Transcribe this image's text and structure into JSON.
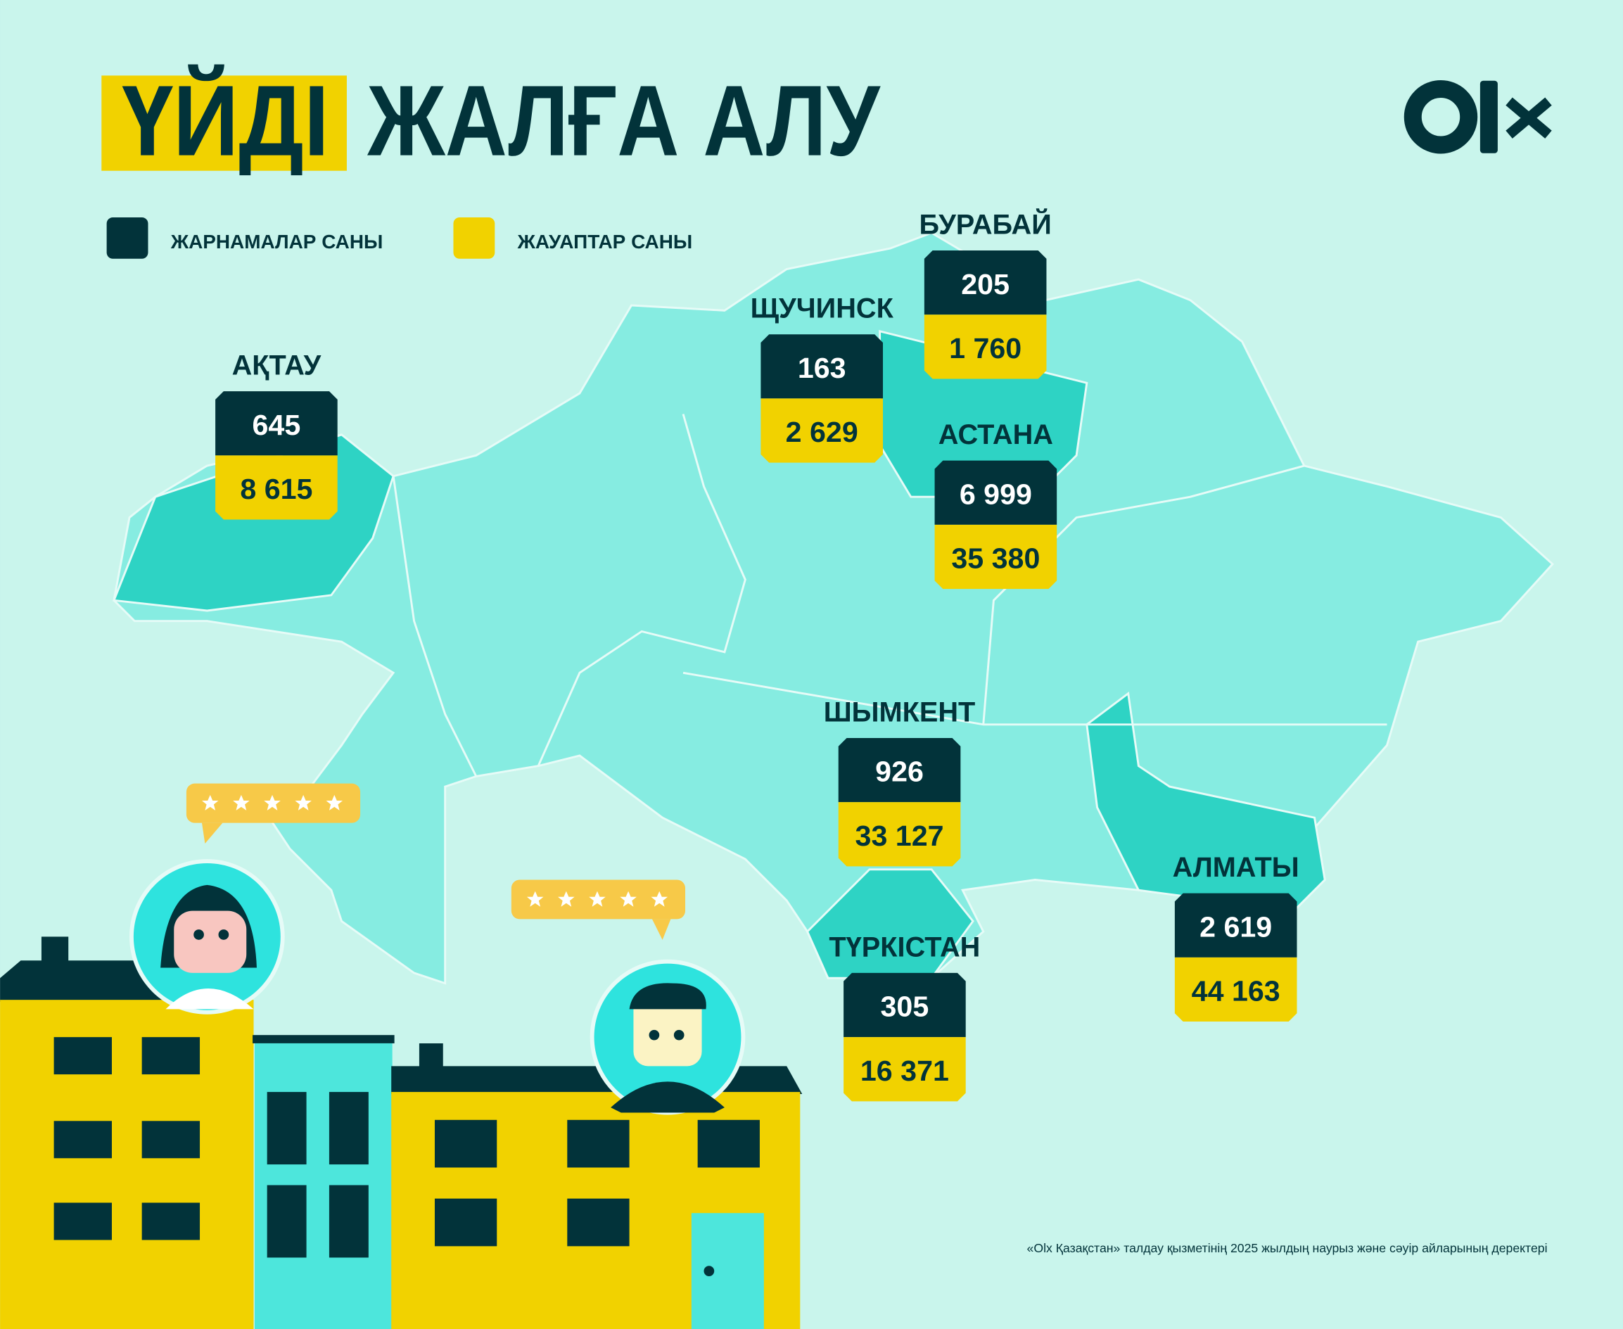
{
  "header": {
    "title_highlight": "ҮЙДІ",
    "title_rest": "ЖАЛҒА АЛУ"
  },
  "legend": [
    {
      "label": "ЖАРНАМАЛАР САНЫ",
      "color": "#02333a"
    },
    {
      "label": "ЖАУАПТАР САНЫ",
      "color": "#f1d200"
    }
  ],
  "cities": [
    {
      "name": "АҚТАУ",
      "listings": "645",
      "responses": "8 615"
    },
    {
      "name": "ЩУЧИНСК",
      "listings": "163",
      "responses": "2 629"
    },
    {
      "name": "БУРАБАЙ",
      "listings": "205",
      "responses": "1 760"
    },
    {
      "name": "АСТАНА",
      "listings": "6 999",
      "responses": "35 380"
    },
    {
      "name": "ШЫМКЕНТ",
      "listings": "926",
      "responses": "33 127"
    },
    {
      "name": "ТҮРКІСТАН",
      "listings": "305",
      "responses": "16 371"
    },
    {
      "name": "АЛМАТЫ",
      "listings": "2 619",
      "responses": "44 163"
    }
  ],
  "footnote": "«Olx Қазақстан» талдау қызметінің 2025 жылдың наурыз және сәуір айларының деректері"
}
